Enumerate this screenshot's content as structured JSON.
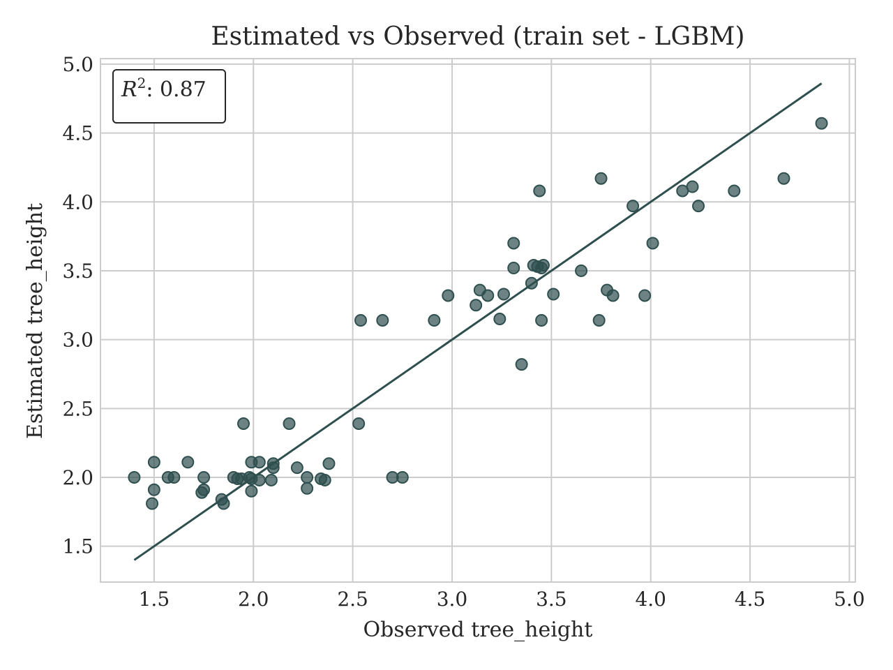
{
  "chart_data": {
    "type": "scatter",
    "title": "Estimated vs Observed (train set - LGBM)",
    "xlabel": "Observed tree_height",
    "ylabel": "Estimated tree_height",
    "xlim": [
      1.23,
      5.03
    ],
    "ylim": [
      1.24,
      5.04
    ],
    "x_ticks": [
      1.5,
      2.0,
      2.5,
      3.0,
      3.5,
      4.0,
      4.5,
      5.0
    ],
    "y_ticks": [
      1.5,
      2.0,
      2.5,
      3.0,
      3.5,
      4.0,
      4.5,
      5.0
    ],
    "x_tick_labels": [
      "1.5",
      "2.0",
      "2.5",
      "3.0",
      "3.5",
      "4.0",
      "4.5",
      "5.0"
    ],
    "y_tick_labels": [
      "1.5",
      "2.0",
      "2.5",
      "3.0",
      "3.5",
      "4.0",
      "4.5",
      "5.0"
    ],
    "grid": true,
    "annotation": {
      "label_symbol": "R",
      "label_sup": "2",
      "label_rest": ": 0.87",
      "position": "top-left"
    },
    "reference_line": {
      "type": "identity",
      "from": [
        1.4,
        1.4
      ],
      "to": [
        4.86,
        4.86
      ]
    },
    "colors": {
      "points": "#2f4f4f",
      "line": "#2f4f4f",
      "grid": "#cccccc",
      "frame": "#cccccc",
      "text": "#262626"
    },
    "points": [
      [
        1.4,
        2.0
      ],
      [
        1.5,
        2.11
      ],
      [
        1.5,
        1.91
      ],
      [
        1.49,
        1.81
      ],
      [
        1.57,
        2.0
      ],
      [
        1.6,
        2.0
      ],
      [
        1.67,
        2.11
      ],
      [
        1.75,
        2.0
      ],
      [
        1.74,
        1.89
      ],
      [
        1.75,
        1.91
      ],
      [
        1.84,
        1.84
      ],
      [
        1.85,
        1.81
      ],
      [
        1.9,
        2.0
      ],
      [
        1.92,
        1.99
      ],
      [
        1.94,
        1.99
      ],
      [
        1.95,
        2.39
      ],
      [
        1.98,
        2.0
      ],
      [
        1.99,
        2.11
      ],
      [
        1.99,
        1.99
      ],
      [
        1.99,
        1.9
      ],
      [
        2.03,
        1.98
      ],
      [
        2.03,
        2.11
      ],
      [
        2.09,
        1.98
      ],
      [
        2.1,
        2.07
      ],
      [
        2.1,
        2.1
      ],
      [
        2.18,
        2.39
      ],
      [
        2.22,
        2.07
      ],
      [
        2.27,
        2.0
      ],
      [
        2.27,
        1.92
      ],
      [
        2.34,
        1.99
      ],
      [
        2.36,
        1.98
      ],
      [
        2.38,
        2.1
      ],
      [
        2.53,
        2.39
      ],
      [
        2.54,
        3.14
      ],
      [
        2.65,
        3.14
      ],
      [
        2.7,
        2.0
      ],
      [
        2.75,
        2.0
      ],
      [
        2.91,
        3.14
      ],
      [
        2.98,
        3.32
      ],
      [
        3.12,
        3.25
      ],
      [
        3.14,
        3.36
      ],
      [
        3.18,
        3.32
      ],
      [
        3.24,
        3.15
      ],
      [
        3.26,
        3.33
      ],
      [
        3.31,
        3.7
      ],
      [
        3.31,
        3.52
      ],
      [
        3.35,
        2.82
      ],
      [
        3.4,
        3.41
      ],
      [
        3.41,
        3.54
      ],
      [
        3.43,
        3.53
      ],
      [
        3.44,
        4.08
      ],
      [
        3.45,
        3.52
      ],
      [
        3.46,
        3.54
      ],
      [
        3.45,
        3.14
      ],
      [
        3.51,
        3.33
      ],
      [
        3.65,
        3.5
      ],
      [
        3.75,
        4.17
      ],
      [
        3.74,
        3.14
      ],
      [
        3.78,
        3.36
      ],
      [
        3.81,
        3.32
      ],
      [
        3.91,
        3.97
      ],
      [
        3.97,
        3.32
      ],
      [
        4.01,
        3.7
      ],
      [
        4.16,
        4.08
      ],
      [
        4.21,
        4.11
      ],
      [
        4.24,
        3.97
      ],
      [
        4.42,
        4.08
      ],
      [
        4.67,
        4.17
      ],
      [
        4.86,
        4.57
      ]
    ]
  }
}
